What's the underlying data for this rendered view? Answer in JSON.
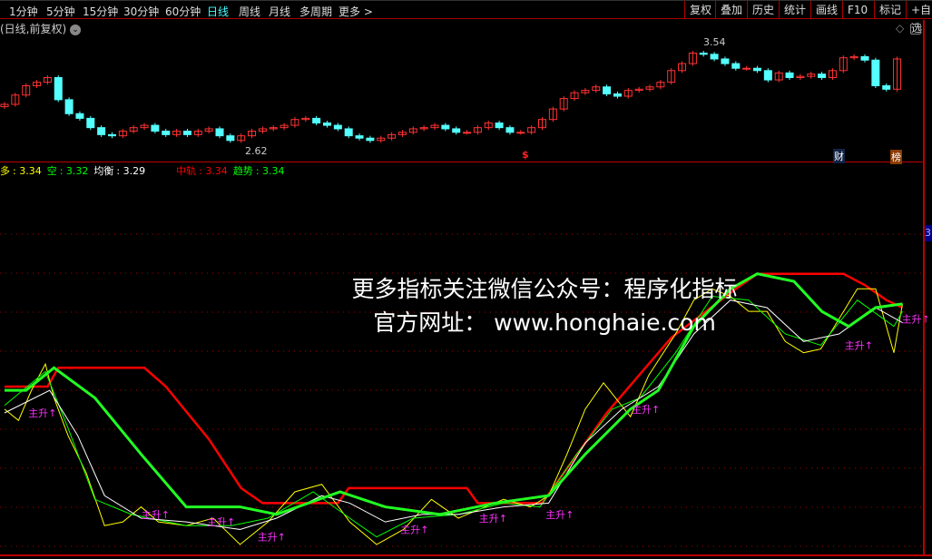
{
  "toolbar": {
    "periods": [
      "1分钟",
      "5分钟",
      "15分钟",
      "30分钟",
      "60分钟",
      "日线",
      "周线",
      "月线",
      "多周期",
      "更多 >"
    ],
    "active_period": "日线",
    "tools": [
      "复权",
      "叠加",
      "历史",
      "统计",
      "画线",
      "F10",
      "标记",
      "+自选"
    ]
  },
  "chart_header": {
    "mode": "(日线,前复权)",
    "dropdown_icon": "chevron-down-circle-icon",
    "right_icons": [
      "diamond-icon",
      "panel-toggle-icon"
    ]
  },
  "price_chart": {
    "high_label": "3.54",
    "low_label": "2.62",
    "markers": {
      "dollar": "$",
      "cai": "财",
      "bang": "榜"
    },
    "closes": [
      3.01,
      3.09,
      3.17,
      3.2,
      3.24,
      3.05,
      2.93,
      2.89,
      2.81,
      2.75,
      2.74,
      2.78,
      2.81,
      2.83,
      2.78,
      2.75,
      2.78,
      2.75,
      2.78,
      2.8,
      2.74,
      2.7,
      2.74,
      2.78,
      2.8,
      2.81,
      2.83,
      2.88,
      2.89,
      2.85,
      2.83,
      2.8,
      2.74,
      2.72,
      2.7,
      2.72,
      2.75,
      2.77,
      2.8,
      2.81,
      2.83,
      2.8,
      2.77,
      2.77,
      2.81,
      2.85,
      2.81,
      2.77,
      2.77,
      2.81,
      2.88,
      2.97,
      3.06,
      3.11,
      3.13,
      3.16,
      3.1,
      3.08,
      3.13,
      3.14,
      3.16,
      3.2,
      3.3,
      3.36,
      3.45,
      3.44,
      3.4,
      3.36,
      3.32,
      3.32,
      3.3,
      3.22,
      3.28,
      3.24,
      3.25,
      3.27,
      3.24,
      3.3,
      3.41,
      3.42,
      3.39,
      3.17,
      3.14,
      3.4
    ],
    "up_color": "#ff3232",
    "down_color": "#54ffff"
  },
  "indicator": {
    "legend": [
      {
        "label": "多",
        "value": "3.34",
        "color": "#ffff00"
      },
      {
        "label": "空",
        "value": "3.32",
        "color": "#00ff00"
      },
      {
        "label": "均衡",
        "value": "3.29",
        "color": "#ffffff"
      },
      {
        "label": "中轨",
        "value": "3.34",
        "color": "#ff0000"
      },
      {
        "label": "趋势",
        "value": "3.34",
        "color": "#00ff00"
      }
    ],
    "right_axis_label": "3",
    "signal_text": "主升↑",
    "series": {
      "zhonggui": [
        [
          0,
          3.12
        ],
        [
          4,
          3.12
        ],
        [
          5,
          3.17
        ],
        [
          13,
          3.17
        ],
        [
          15,
          3.12
        ],
        [
          19,
          2.98
        ],
        [
          22,
          2.85
        ],
        [
          24,
          2.81
        ],
        [
          31,
          2.81
        ],
        [
          32,
          2.85
        ],
        [
          43,
          2.85
        ],
        [
          44,
          2.81
        ],
        [
          50,
          2.81
        ],
        [
          56,
          3.05
        ],
        [
          62,
          3.25
        ],
        [
          68,
          3.38
        ],
        [
          70,
          3.42
        ],
        [
          78,
          3.42
        ],
        [
          80,
          3.39
        ],
        [
          82,
          3.35
        ],
        [
          83.5,
          3.33
        ]
      ],
      "qushi": [
        [
          0,
          3.11
        ],
        [
          2,
          3.11
        ],
        [
          4.6,
          3.17
        ],
        [
          8.4,
          3.09
        ],
        [
          12.7,
          2.94
        ],
        [
          16.9,
          2.8
        ],
        [
          21.9,
          2.8
        ],
        [
          25.3,
          2.78
        ],
        [
          31.2,
          2.84
        ],
        [
          35.4,
          2.8
        ],
        [
          40.5,
          2.78
        ],
        [
          45.6,
          2.81
        ],
        [
          50.6,
          2.83
        ],
        [
          54,
          2.94
        ],
        [
          58.2,
          3.06
        ],
        [
          60.8,
          3.11
        ],
        [
          64.1,
          3.28
        ],
        [
          67.5,
          3.38
        ],
        [
          70,
          3.42
        ],
        [
          73.4,
          3.4
        ],
        [
          76,
          3.32
        ],
        [
          78.5,
          3.28
        ],
        [
          81,
          3.33
        ],
        [
          83.5,
          3.34
        ]
      ],
      "duo": [
        [
          0,
          3.06
        ],
        [
          1.3,
          3.03
        ],
        [
          2.5,
          3.11
        ],
        [
          3.8,
          3.18
        ],
        [
          4.6,
          3.09
        ],
        [
          5.9,
          2.99
        ],
        [
          7.6,
          2.89
        ],
        [
          9.3,
          2.75
        ],
        [
          11,
          2.76
        ],
        [
          12.7,
          2.8
        ],
        [
          14.3,
          2.76
        ],
        [
          16.9,
          2.75
        ],
        [
          19.4,
          2.77
        ],
        [
          21.9,
          2.7
        ],
        [
          24.5,
          2.76
        ],
        [
          27,
          2.84
        ],
        [
          29.5,
          2.86
        ],
        [
          32.1,
          2.76
        ],
        [
          34.6,
          2.7
        ],
        [
          37.1,
          2.74
        ],
        [
          39.7,
          2.82
        ],
        [
          42.2,
          2.77
        ],
        [
          44.7,
          2.8
        ],
        [
          46.4,
          2.82
        ],
        [
          48.9,
          2.8
        ],
        [
          50.6,
          2.83
        ],
        [
          52.3,
          2.94
        ],
        [
          54,
          3.06
        ],
        [
          55.7,
          3.13
        ],
        [
          58.2,
          3.04
        ],
        [
          59.9,
          3.15
        ],
        [
          62.4,
          3.26
        ],
        [
          64.1,
          3.35
        ],
        [
          65.8,
          3.38
        ],
        [
          67.5,
          3.36
        ],
        [
          69.2,
          3.32
        ],
        [
          70.9,
          3.32
        ],
        [
          72.6,
          3.24
        ],
        [
          74.3,
          3.21
        ],
        [
          75.9,
          3.22
        ],
        [
          77.6,
          3.3
        ],
        [
          79.3,
          3.38
        ],
        [
          81,
          3.38
        ],
        [
          82.7,
          3.21
        ],
        [
          83.5,
          3.34
        ]
      ],
      "kong": [
        [
          0,
          3.07
        ],
        [
          3.8,
          3.16
        ],
        [
          5.9,
          3.01
        ],
        [
          8.4,
          2.82
        ],
        [
          11.8,
          2.78
        ],
        [
          16.9,
          2.75
        ],
        [
          21.1,
          2.75
        ],
        [
          24.5,
          2.77
        ],
        [
          28.7,
          2.84
        ],
        [
          32.1,
          2.77
        ],
        [
          34.6,
          2.72
        ],
        [
          38,
          2.77
        ],
        [
          42.2,
          2.78
        ],
        [
          46.4,
          2.81
        ],
        [
          49.8,
          2.8
        ],
        [
          53.2,
          2.94
        ],
        [
          56.5,
          3.06
        ],
        [
          59.1,
          3.09
        ],
        [
          62.4,
          3.21
        ],
        [
          65.8,
          3.36
        ],
        [
          69.2,
          3.35
        ],
        [
          72.6,
          3.26
        ],
        [
          75.9,
          3.23
        ],
        [
          79.3,
          3.35
        ],
        [
          82.7,
          3.28
        ],
        [
          83.5,
          3.32
        ]
      ],
      "junheng": [
        [
          0,
          3.05
        ],
        [
          4.2,
          3.11
        ],
        [
          6.8,
          2.99
        ],
        [
          9.3,
          2.83
        ],
        [
          12.7,
          2.77
        ],
        [
          16.9,
          2.76
        ],
        [
          21.9,
          2.74
        ],
        [
          25.3,
          2.77
        ],
        [
          29.5,
          2.83
        ],
        [
          32.1,
          2.81
        ],
        [
          35.4,
          2.76
        ],
        [
          38.8,
          2.78
        ],
        [
          42.2,
          2.78
        ],
        [
          46.4,
          2.8
        ],
        [
          50.6,
          2.81
        ],
        [
          54,
          2.97
        ],
        [
          57.4,
          3.06
        ],
        [
          60.8,
          3.12
        ],
        [
          64.1,
          3.26
        ],
        [
          67.5,
          3.35
        ],
        [
          70.9,
          3.33
        ],
        [
          74.3,
          3.24
        ],
        [
          77.6,
          3.26
        ],
        [
          81,
          3.33
        ],
        [
          83.5,
          3.29
        ]
      ]
    },
    "signals": [
      [
        3.4,
        3.05
      ],
      [
        13.9,
        2.78
      ],
      [
        20,
        2.76
      ],
      [
        24.7,
        2.72
      ],
      [
        38,
        2.74
      ],
      [
        45.3,
        2.77
      ],
      [
        51.5,
        2.78
      ],
      [
        59.5,
        3.06
      ],
      [
        79.3,
        3.23
      ],
      [
        84.6,
        3.3
      ]
    ]
  },
  "watermark": {
    "line1": "更多指标关注微信公众号：程序化指标",
    "line2": "官方网址： www.honghaie.com"
  }
}
